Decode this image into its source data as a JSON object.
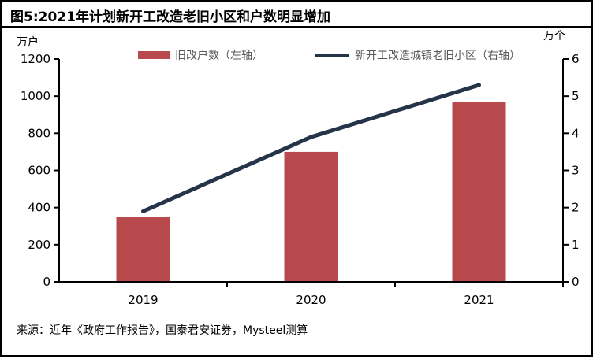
{
  "figure": {
    "title": "图5:2021年计划新开工改造老旧小区和户数明显增加",
    "source": "来源：近年《政府工作报告》，国泰君安证券，Mysteel测算"
  },
  "chart_data": {
    "type": "bar",
    "subtype": "bar-and-line-dual-axis",
    "categories": [
      "2019",
      "2020",
      "2021"
    ],
    "series": [
      {
        "name": "旧改户数（左轴）",
        "type": "bar",
        "axis": "left",
        "values": [
          352,
          700,
          970
        ],
        "color": "#B8494D"
      },
      {
        "name": "新开工改造城镇老旧小区（右轴）",
        "type": "line",
        "axis": "right",
        "values": [
          1.9,
          3.9,
          5.3
        ],
        "color": "#253449"
      }
    ],
    "left_axis": {
      "label": "万户",
      "min": 0,
      "max": 1200,
      "step": 200,
      "ticks": [
        0,
        200,
        400,
        600,
        800,
        1000,
        1200
      ]
    },
    "right_axis": {
      "label": "万个",
      "min": 0,
      "max": 6,
      "step": 1,
      "ticks": [
        0,
        1,
        2,
        3,
        4,
        5,
        6
      ]
    },
    "legend_position": "top",
    "grid": false
  }
}
